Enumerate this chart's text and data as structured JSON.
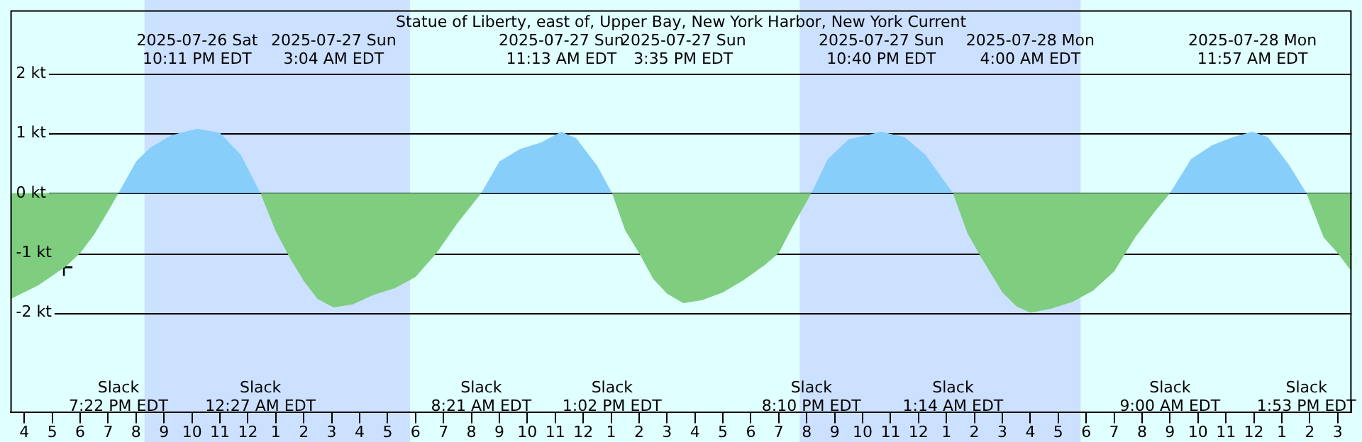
{
  "chart_data": {
    "type": "area",
    "title": "Statue of Liberty, east of, Upper Bay, New York Harbor, New York Current",
    "x": [
      "2025-07-26T15:30",
      "2025-07-26T16:30",
      "2025-07-26T17:30",
      "2025-07-26T18:00",
      "2025-07-26T18:30",
      "2025-07-26T19:00",
      "2025-07-26T19:22",
      "2025-07-26T20:00",
      "2025-07-26T20:30",
      "2025-07-26T21:15",
      "2025-07-26T22:11",
      "2025-07-26T23:00",
      "2025-07-26T23:45",
      "2025-07-27T00:27",
      "2025-07-27T01:00",
      "2025-07-27T01:30",
      "2025-07-27T02:00",
      "2025-07-27T02:30",
      "2025-07-27T03:04",
      "2025-07-27T03:45",
      "2025-07-27T04:30",
      "2025-07-27T05:15",
      "2025-07-27T06:00",
      "2025-07-27T06:45",
      "2025-07-27T07:30",
      "2025-07-27T08:21",
      "2025-07-27T09:00",
      "2025-07-27T09:45",
      "2025-07-27T10:30",
      "2025-07-27T11:13",
      "2025-07-27T11:45",
      "2025-07-27T12:30",
      "2025-07-27T13:02",
      "2025-07-27T13:30",
      "2025-07-27T14:00",
      "2025-07-27T14:30",
      "2025-07-27T15:00",
      "2025-07-27T15:35",
      "2025-07-27T16:15",
      "2025-07-27T17:00",
      "2025-07-27T17:45",
      "2025-07-27T18:30",
      "2025-07-27T19:00",
      "2025-07-27T19:30",
      "2025-07-27T20:10",
      "2025-07-27T20:45",
      "2025-07-27T21:30",
      "2025-07-27T22:40",
      "2025-07-27T23:30",
      "2025-07-28T00:15",
      "2025-07-28T01:14",
      "2025-07-28T01:45",
      "2025-07-28T02:15",
      "2025-07-28T03:00",
      "2025-07-28T03:30",
      "2025-07-28T04:00",
      "2025-07-28T04:45",
      "2025-07-28T05:30",
      "2025-07-28T06:15",
      "2025-07-28T07:00",
      "2025-07-28T07:45",
      "2025-07-28T08:30",
      "2025-07-28T09:00",
      "2025-07-28T09:45",
      "2025-07-28T10:30",
      "2025-07-28T11:15",
      "2025-07-28T11:57",
      "2025-07-28T12:30",
      "2025-07-28T13:15",
      "2025-07-28T13:53",
      "2025-07-28T14:30",
      "2025-07-28T15:00",
      "2025-07-28T15:30"
    ],
    "series": [
      {
        "color": "#87cefa",
        "values": [
          null,
          null,
          null,
          null,
          null,
          null,
          0,
          0.53,
          0.76,
          0.97,
          1.08,
          1.01,
          0.64,
          0,
          null,
          null,
          null,
          null,
          null,
          null,
          null,
          null,
          null,
          null,
          null,
          0,
          0.53,
          0.74,
          0.85,
          1.03,
          0.92,
          0.46,
          0,
          null,
          null,
          null,
          null,
          null,
          null,
          null,
          null,
          null,
          null,
          null,
          0,
          0.57,
          0.9,
          1.03,
          0.94,
          0.64,
          0,
          null,
          null,
          null,
          null,
          null,
          null,
          null,
          null,
          null,
          null,
          null,
          0,
          0.57,
          0.8,
          0.94,
          1.03,
          0.94,
          0.48,
          0,
          null,
          null,
          null
        ]
      },
      {
        "color": "#7fcd7f",
        "values": [
          -1.77,
          -1.54,
          -1.22,
          -1.0,
          -0.69,
          -0.3,
          0,
          null,
          null,
          null,
          null,
          null,
          null,
          0,
          -0.64,
          -1.08,
          -1.47,
          -1.77,
          -1.91,
          -1.86,
          -1.7,
          -1.59,
          -1.4,
          -1.0,
          -0.5,
          0,
          null,
          null,
          null,
          null,
          null,
          null,
          0,
          -0.62,
          -1.0,
          -1.43,
          -1.68,
          -1.84,
          -1.79,
          -1.66,
          -1.45,
          -1.2,
          -1.0,
          -0.55,
          0,
          null,
          null,
          null,
          null,
          null,
          0,
          -0.67,
          -1.08,
          -1.66,
          -1.89,
          -2.0,
          -1.93,
          -1.82,
          -1.63,
          -1.31,
          -0.74,
          -0.28,
          0,
          null,
          null,
          null,
          null,
          null,
          null,
          0,
          -0.74,
          -1.0,
          -1.31
        ]
      },
      {
        "type": "scatter",
        "marker": "cross",
        "color": "#000000",
        "x": [
          "2025-07-26T17:25"
        ],
        "values": [
          -1.24
        ]
      }
    ],
    "xlim": [
      "2025-07-26T15:30",
      "2025-07-28T15:30"
    ],
    "xticks": [
      {
        "value": "2025-07-26T16:00",
        "label": "4"
      },
      {
        "value": "2025-07-26T17:00",
        "label": "5"
      },
      {
        "value": "2025-07-26T18:00",
        "label": "6"
      },
      {
        "value": "2025-07-26T19:00",
        "label": "7"
      },
      {
        "value": "2025-07-26T20:00",
        "label": "8"
      },
      {
        "value": "2025-07-26T21:00",
        "label": "9"
      },
      {
        "value": "2025-07-26T22:00",
        "label": "10"
      },
      {
        "value": "2025-07-26T23:00",
        "label": "11"
      },
      {
        "value": "2025-07-27T00:00",
        "label": "12"
      },
      {
        "value": "2025-07-27T01:00",
        "label": "1"
      },
      {
        "value": "2025-07-27T02:00",
        "label": "2"
      },
      {
        "value": "2025-07-27T03:00",
        "label": "3"
      },
      {
        "value": "2025-07-27T04:00",
        "label": "4"
      },
      {
        "value": "2025-07-27T05:00",
        "label": "5"
      },
      {
        "value": "2025-07-27T06:00",
        "label": "6"
      },
      {
        "value": "2025-07-27T07:00",
        "label": "7"
      },
      {
        "value": "2025-07-27T08:00",
        "label": "8"
      },
      {
        "value": "2025-07-27T09:00",
        "label": "9"
      },
      {
        "value": "2025-07-27T10:00",
        "label": "10"
      },
      {
        "value": "2025-07-27T11:00",
        "label": "11"
      },
      {
        "value": "2025-07-27T12:00",
        "label": "12"
      },
      {
        "value": "2025-07-27T13:00",
        "label": "1"
      },
      {
        "value": "2025-07-27T14:00",
        "label": "2"
      },
      {
        "value": "2025-07-27T15:00",
        "label": "3"
      },
      {
        "value": "2025-07-27T16:00",
        "label": "4"
      },
      {
        "value": "2025-07-27T17:00",
        "label": "5"
      },
      {
        "value": "2025-07-27T18:00",
        "label": "6"
      },
      {
        "value": "2025-07-27T19:00",
        "label": "7"
      },
      {
        "value": "2025-07-27T20:00",
        "label": "8"
      },
      {
        "value": "2025-07-27T21:00",
        "label": "9"
      },
      {
        "value": "2025-07-27T22:00",
        "label": "10"
      },
      {
        "value": "2025-07-27T23:00",
        "label": "11"
      },
      {
        "value": "2025-07-28T00:00",
        "label": "12"
      },
      {
        "value": "2025-07-28T01:00",
        "label": "1"
      },
      {
        "value": "2025-07-28T02:00",
        "label": "2"
      },
      {
        "value": "2025-07-28T03:00",
        "label": "3"
      },
      {
        "value": "2025-07-28T04:00",
        "label": "4"
      },
      {
        "value": "2025-07-28T05:00",
        "label": "5"
      },
      {
        "value": "2025-07-28T06:00",
        "label": "6"
      },
      {
        "value": "2025-07-28T07:00",
        "label": "7"
      },
      {
        "value": "2025-07-28T08:00",
        "label": "8"
      },
      {
        "value": "2025-07-28T09:00",
        "label": "9"
      },
      {
        "value": "2025-07-28T10:00",
        "label": "10"
      },
      {
        "value": "2025-07-28T11:00",
        "label": "11"
      },
      {
        "value": "2025-07-28T12:00",
        "label": "12"
      },
      {
        "value": "2025-07-28T13:00",
        "label": "1"
      },
      {
        "value": "2025-07-28T14:00",
        "label": "2"
      },
      {
        "value": "2025-07-28T15:00",
        "label": "3"
      }
    ],
    "ylim": [
      -3.66,
      3.06
    ],
    "yticks": [
      {
        "value": -2,
        "label": "-2 kt"
      },
      {
        "value": -1,
        "label": "-1 kt"
      },
      {
        "value": 0,
        "label": "0 kt"
      },
      {
        "value": 1,
        "label": "1 kt"
      },
      {
        "value": 2,
        "label": "2 kt"
      }
    ],
    "grid": "y",
    "legend": false,
    "bands": [
      {
        "axis": "x",
        "from": "2025-07-26T20:18",
        "to": "2025-07-27T05:48",
        "color": "#cce0ff"
      },
      {
        "axis": "x",
        "from": "2025-07-27T19:45",
        "to": "2025-07-28T05:48",
        "color": "#cce0ff"
      }
    ],
    "annotations": [
      "2025-07-26 Sat\n10:11 PM EDT",
      "2025-07-27 Sun\n3:04 AM EDT",
      "2025-07-27 Sun\n11:13 AM EDT",
      "2025-07-27 Sun\n3:35 PM EDT",
      "2025-07-27 Sun\n10:40 PM EDT",
      "2025-07-28 Mon\n4:00 AM EDT",
      "2025-07-28 Mon\n11:57 AM EDT",
      "Slack\n7:22 PM EDT",
      "Slack\n12:27 AM EDT",
      "Slack\n8:21 AM EDT",
      "Slack\n1:02 PM EDT",
      "Slack\n8:10 PM EDT",
      "Slack\n1:14 AM EDT",
      "Slack\n9:00 AM EDT",
      "Slack\n1:53 PM EDT"
    ]
  }
}
